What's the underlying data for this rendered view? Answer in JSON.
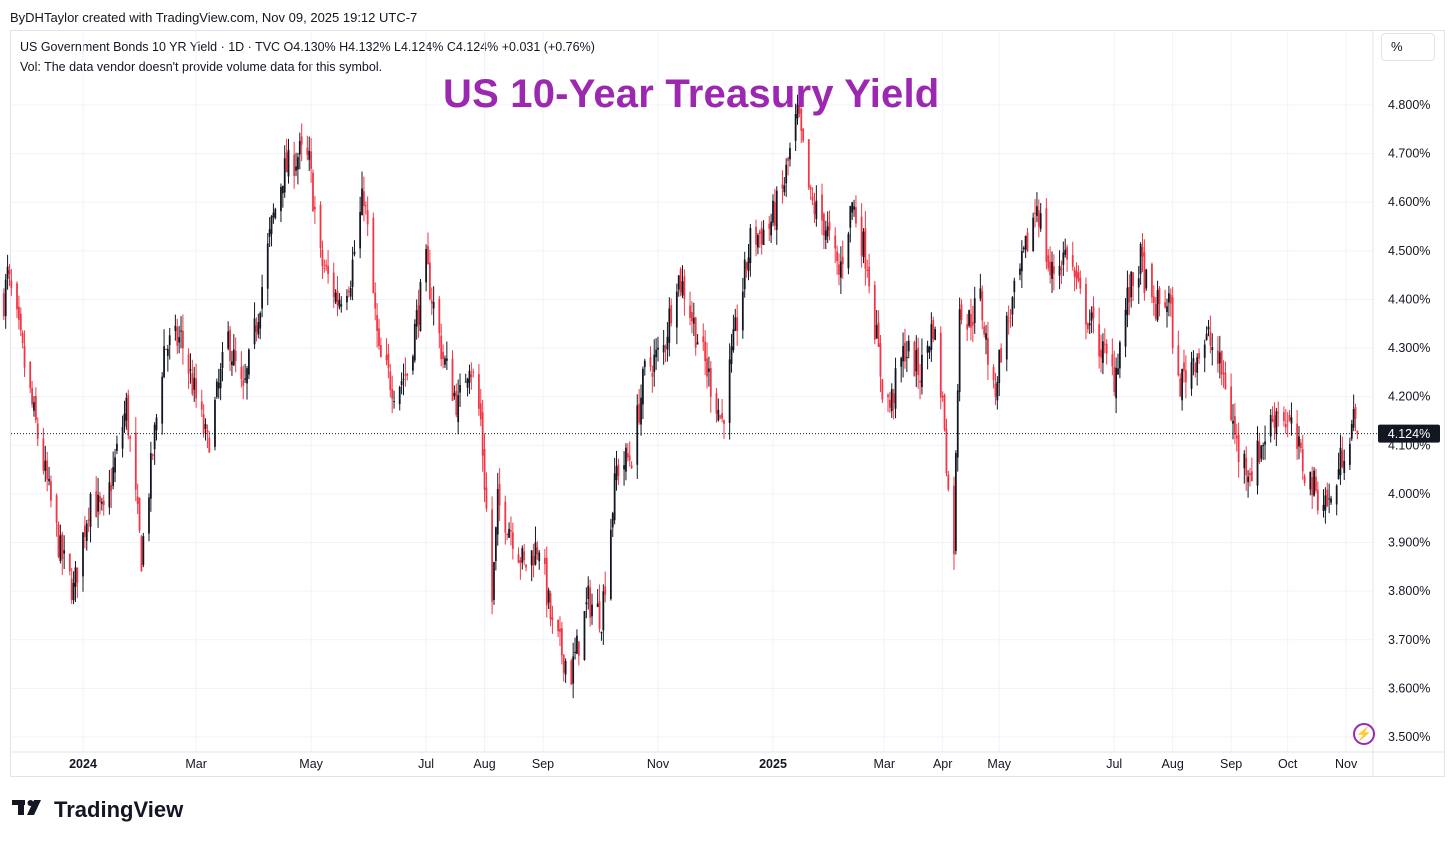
{
  "header": {
    "byline": "ByDHTaylor created with TradingView.com, Nov 09, 2025 19:12 UTC-7",
    "symbol_line": "US Government Bonds 10 YR Yield · 1D · TVC  O4.130%  H4.132%  L4.124%  C4.124%  +0.031 (+0.76%)",
    "volume_line": "Vol: The data vendor doesn't provide volume data for this symbol.",
    "scale_button": "%"
  },
  "title": "US 10-Year Treasury Yield",
  "footer": {
    "brand": "TradingView"
  },
  "icons": {
    "alert": "lightning-icon",
    "logo": "tradingview-logo-icon"
  },
  "colors": {
    "up": "#131722",
    "down": "#f23645",
    "accent": "#9c27b0",
    "grid": "#f0f3fa"
  },
  "chart_data": {
    "type": "candlestick",
    "title": "US 10-Year Treasury Yield",
    "ylim": [
      3.45,
      4.85
    ],
    "y_ticks": [
      "3.500%",
      "3.600%",
      "3.700%",
      "3.800%",
      "3.900%",
      "4.000%",
      "4.100%",
      "4.200%",
      "4.300%",
      "4.400%",
      "4.500%",
      "4.600%",
      "4.700%",
      "4.800%"
    ],
    "x_ticks": [
      {
        "label": "2024",
        "date": "2024-01-01",
        "bold": true
      },
      {
        "label": "Mar",
        "date": "2024-03-01"
      },
      {
        "label": "May",
        "date": "2024-05-01"
      },
      {
        "label": "Jul",
        "date": "2024-07-01"
      },
      {
        "label": "Aug",
        "date": "2024-08-01"
      },
      {
        "label": "Sep",
        "date": "2024-09-01"
      },
      {
        "label": "Nov",
        "date": "2024-11-01"
      },
      {
        "label": "2025",
        "date": "2025-01-01",
        "bold": true
      },
      {
        "label": "Mar",
        "date": "2025-03-01"
      },
      {
        "label": "Apr",
        "date": "2025-04-01"
      },
      {
        "label": "May",
        "date": "2025-05-01"
      },
      {
        "label": "Jul",
        "date": "2025-07-01"
      },
      {
        "label": "Aug",
        "date": "2025-08-01"
      },
      {
        "label": "Sep",
        "date": "2025-09-01"
      },
      {
        "label": "Oct",
        "date": "2025-10-01"
      },
      {
        "label": "Nov",
        "date": "2025-11-01"
      }
    ],
    "date_range": [
      "2023-11-20",
      "2025-11-07"
    ],
    "last_price": 4.124,
    "last_price_label": "4.124%",
    "close_path": [
      [
        "2023-11-20",
        4.4
      ],
      [
        "2023-11-22",
        4.45
      ],
      [
        "2023-11-27",
        4.35
      ],
      [
        "2023-12-05",
        4.18
      ],
      [
        "2023-12-13",
        4.02
      ],
      [
        "2023-12-20",
        3.88
      ],
      [
        "2023-12-27",
        3.8
      ],
      [
        "2024-01-05",
        4.0
      ],
      [
        "2024-01-12",
        3.95
      ],
      [
        "2024-01-24",
        4.18
      ],
      [
        "2024-02-01",
        3.87
      ],
      [
        "2024-02-13",
        4.3
      ],
      [
        "2024-02-22",
        4.32
      ],
      [
        "2024-03-07",
        4.1
      ],
      [
        "2024-03-18",
        4.32
      ],
      [
        "2024-03-26",
        4.2
      ],
      [
        "2024-04-01",
        4.33
      ],
      [
        "2024-04-10",
        4.55
      ],
      [
        "2024-04-16",
        4.66
      ],
      [
        "2024-04-25",
        4.7
      ],
      [
        "2024-04-30",
        4.68
      ],
      [
        "2024-05-06",
        4.48
      ],
      [
        "2024-05-15",
        4.4
      ],
      [
        "2024-05-22",
        4.45
      ],
      [
        "2024-05-29",
        4.62
      ],
      [
        "2024-06-06",
        4.28
      ],
      [
        "2024-06-14",
        4.22
      ],
      [
        "2024-06-21",
        4.25
      ],
      [
        "2024-07-01",
        4.47
      ],
      [
        "2024-07-10",
        4.28
      ],
      [
        "2024-07-18",
        4.18
      ],
      [
        "2024-07-24",
        4.28
      ],
      [
        "2024-07-30",
        4.15
      ],
      [
        "2024-08-05",
        3.78
      ],
      [
        "2024-08-08",
        3.98
      ],
      [
        "2024-08-15",
        3.93
      ],
      [
        "2024-08-22",
        3.85
      ],
      [
        "2024-08-30",
        3.9
      ],
      [
        "2024-09-06",
        3.72
      ],
      [
        "2024-09-16",
        3.63
      ],
      [
        "2024-09-25",
        3.78
      ],
      [
        "2024-10-02",
        3.75
      ],
      [
        "2024-10-10",
        4.05
      ],
      [
        "2024-10-18",
        4.08
      ],
      [
        "2024-10-25",
        4.25
      ],
      [
        "2024-11-04",
        4.3
      ],
      [
        "2024-11-11",
        4.45
      ],
      [
        "2024-11-15",
        4.42
      ],
      [
        "2024-11-25",
        4.28
      ],
      [
        "2024-12-05",
        4.15
      ],
      [
        "2024-12-12",
        4.33
      ],
      [
        "2024-12-20",
        4.52
      ],
      [
        "2024-12-30",
        4.55
      ],
      [
        "2025-01-06",
        4.62
      ],
      [
        "2025-01-14",
        4.78
      ],
      [
        "2025-01-21",
        4.6
      ],
      [
        "2025-01-29",
        4.55
      ],
      [
        "2025-02-05",
        4.45
      ],
      [
        "2025-02-12",
        4.6
      ],
      [
        "2025-02-20",
        4.48
      ],
      [
        "2025-02-28",
        4.22
      ],
      [
        "2025-03-04",
        4.18
      ],
      [
        "2025-03-12",
        4.3
      ],
      [
        "2025-03-20",
        4.25
      ],
      [
        "2025-03-27",
        4.35
      ],
      [
        "2025-04-02",
        4.15
      ],
      [
        "2025-04-04",
        4.0
      ],
      [
        "2025-04-07",
        3.9
      ],
      [
        "2025-04-10",
        4.4
      ],
      [
        "2025-04-14",
        4.35
      ],
      [
        "2025-04-21",
        4.4
      ],
      [
        "2025-04-28",
        4.2
      ],
      [
        "2025-05-02",
        4.3
      ],
      [
        "2025-05-12",
        4.45
      ],
      [
        "2025-05-21",
        4.6
      ],
      [
        "2025-05-28",
        4.45
      ],
      [
        "2025-06-06",
        4.5
      ],
      [
        "2025-06-13",
        4.4
      ],
      [
        "2025-06-24",
        4.3
      ],
      [
        "2025-07-01",
        4.24
      ],
      [
        "2025-07-08",
        4.4
      ],
      [
        "2025-07-15",
        4.48
      ],
      [
        "2025-07-21",
        4.38
      ],
      [
        "2025-07-30",
        4.4
      ],
      [
        "2025-08-04",
        4.22
      ],
      [
        "2025-08-12",
        4.28
      ],
      [
        "2025-08-20",
        4.32
      ],
      [
        "2025-08-29",
        4.23
      ],
      [
        "2025-09-05",
        4.08
      ],
      [
        "2025-09-12",
        4.05
      ],
      [
        "2025-09-19",
        4.12
      ],
      [
        "2025-09-26",
        4.18
      ],
      [
        "2025-10-03",
        4.13
      ],
      [
        "2025-10-10",
        4.05
      ],
      [
        "2025-10-17",
        4.0
      ],
      [
        "2025-10-24",
        3.98
      ],
      [
        "2025-10-31",
        4.1
      ],
      [
        "2025-11-05",
        4.15
      ],
      [
        "2025-11-07",
        4.124
      ]
    ]
  }
}
